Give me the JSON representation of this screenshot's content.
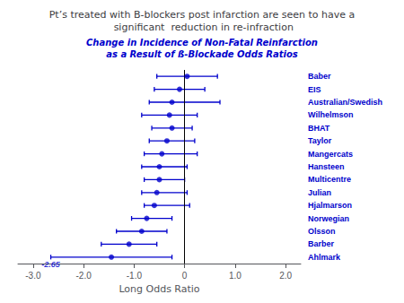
{
  "chart_data": {
    "type": "forest",
    "title": "Pt’s treated with B-blockers post infarction are seen to have a\n significant  reduction in re-infraction",
    "subtitle": "Change in Incidence of Non-Fatal Reinfarction\nas a Result of ß-Blockade Odds Ratios",
    "xlabel": "Long Odds Ratio",
    "categories": [
      "Baber",
      "EIS",
      "Australian/Swedish",
      "Wilhelmson",
      "BHAT",
      "Taylor",
      "Mangercats",
      "Hansteen",
      "Multicentre",
      "Julian",
      "Hjalmarson",
      "Norwegian",
      "Olsson",
      "Barber",
      "Ahlmark"
    ],
    "values": [
      0.05,
      -0.1,
      -0.25,
      -0.3,
      -0.25,
      -0.35,
      -0.45,
      -0.5,
      -0.5,
      -0.55,
      -0.6,
      -0.75,
      -0.85,
      -1.1,
      -1.45
    ],
    "ci_low": [
      -0.55,
      -0.6,
      -0.7,
      -0.85,
      -0.65,
      -0.7,
      -0.8,
      -0.85,
      -0.8,
      -0.85,
      -0.8,
      -1.05,
      -1.35,
      -1.65,
      -2.65
    ],
    "ci_high": [
      0.65,
      0.4,
      0.7,
      0.25,
      0.15,
      0.2,
      0.25,
      0.05,
      0.0,
      0.05,
      0.1,
      -0.25,
      -0.35,
      -0.55,
      -0.25
    ],
    "annotations": [
      {
        "text": "-2.65",
        "x": -2.65,
        "category": "Ahlmark"
      }
    ],
    "vline": 0,
    "color": "#0000cc",
    "xlim": [
      -3.3,
      2.3
    ],
    "xticks": [
      {
        "value": -3,
        "label": "-3.0"
      },
      {
        "value": -2,
        "label": "-2.0"
      },
      {
        "value": -1,
        "label": "-1.0"
      },
      0,
      {
        "value": 1,
        "label": "1.0"
      },
      {
        "value": 2,
        "label": "2.0"
      }
    ],
    "grid": false
  }
}
